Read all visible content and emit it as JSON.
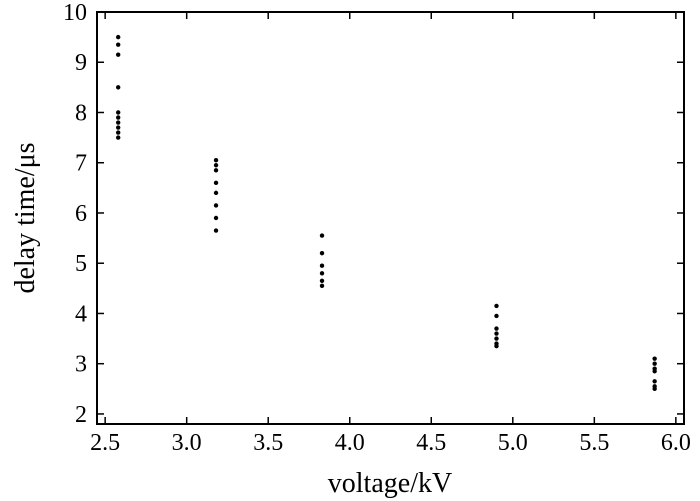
{
  "chart_data": {
    "type": "scatter",
    "title": "",
    "xlabel": "voltage/kV",
    "ylabel": "delay time/μs",
    "xlim": [
      2.45,
      6.05
    ],
    "ylim": [
      1.8,
      10.0
    ],
    "x_ticks": [
      "2.5",
      "3.0",
      "3.5",
      "4.0",
      "4.5",
      "5.0",
      "5.5",
      "6.0"
    ],
    "y_ticks": [
      "2",
      "3",
      "4",
      "5",
      "6",
      "7",
      "8",
      "9",
      "10"
    ],
    "grid": false,
    "legend": "none",
    "marker_color": "#000000",
    "series": [
      {
        "points": [
          [
            2.58,
            9.5
          ],
          [
            2.58,
            9.35
          ],
          [
            2.58,
            9.15
          ],
          [
            2.58,
            8.5
          ],
          [
            2.58,
            8.0
          ],
          [
            2.58,
            7.9
          ],
          [
            2.58,
            7.8
          ],
          [
            2.58,
            7.7
          ],
          [
            2.58,
            7.6
          ],
          [
            2.58,
            7.5
          ],
          [
            3.18,
            7.05
          ],
          [
            3.18,
            6.95
          ],
          [
            3.18,
            6.85
          ],
          [
            3.18,
            6.6
          ],
          [
            3.18,
            6.4
          ],
          [
            3.18,
            6.15
          ],
          [
            3.18,
            5.9
          ],
          [
            3.18,
            5.65
          ],
          [
            3.83,
            5.55
          ],
          [
            3.83,
            5.2
          ],
          [
            3.83,
            4.95
          ],
          [
            3.83,
            4.8
          ],
          [
            3.83,
            4.65
          ],
          [
            3.83,
            4.55
          ],
          [
            4.9,
            4.15
          ],
          [
            4.9,
            3.95
          ],
          [
            4.9,
            3.7
          ],
          [
            4.9,
            3.6
          ],
          [
            4.9,
            3.5
          ],
          [
            4.9,
            3.4
          ],
          [
            4.9,
            3.35
          ],
          [
            5.87,
            3.1
          ],
          [
            5.87,
            3.0
          ],
          [
            5.87,
            2.9
          ],
          [
            5.87,
            2.85
          ],
          [
            5.87,
            2.65
          ],
          [
            5.87,
            2.55
          ],
          [
            5.87,
            2.5
          ]
        ]
      }
    ]
  }
}
